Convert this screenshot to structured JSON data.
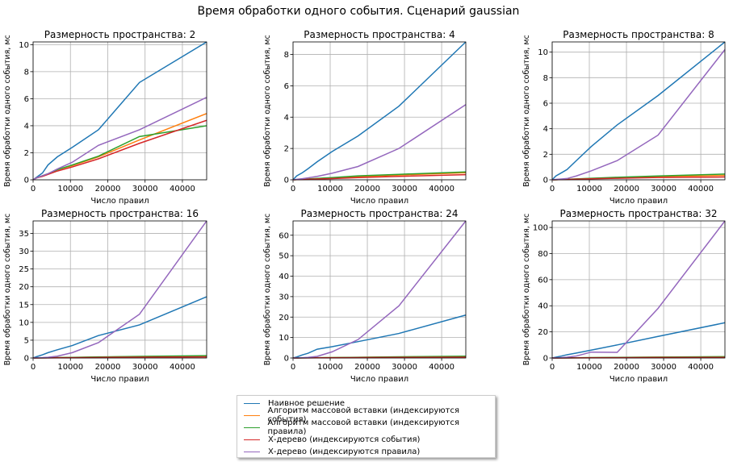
{
  "figure": {
    "title": "Время обработки одного события. Сценарий gaussian"
  },
  "chart_data": [
    {
      "type": "line",
      "title": "Размерность пространства: 2",
      "xlabel": "Число правил",
      "ylabel": "Время обработки одного события, мс",
      "xlim": [
        0,
        46500
      ],
      "ylim": [
        0,
        10.2
      ],
      "xticks": [
        0,
        10000,
        20000,
        30000,
        40000
      ],
      "xtick_labels": [
        "0",
        "10000",
        "20000",
        "30000",
        "40000"
      ],
      "yticks": [
        0,
        2,
        4,
        6,
        8,
        10
      ],
      "ytick_labels": [
        "0",
        "2",
        "4",
        "6",
        "8",
        "10"
      ],
      "grid": true,
      "series": [
        {
          "name": "Наивное решение",
          "color": "#1f77b4",
          "x": [
            0,
            1000,
            2500,
            4000,
            6500,
            10500,
            17500,
            28500,
            46500
          ],
          "y": [
            0,
            0.2,
            0.5,
            1.1,
            1.7,
            2.4,
            3.7,
            7.2,
            10.2
          ]
        },
        {
          "name": "Алгоритм массовой вставки (индексируются события)",
          "color": "#ff7f0e",
          "x": [
            0,
            1000,
            2500,
            4000,
            6500,
            10500,
            17500,
            28500,
            46500
          ],
          "y": [
            0,
            0.15,
            0.3,
            0.45,
            0.75,
            1.05,
            1.7,
            2.95,
            4.9
          ]
        },
        {
          "name": "Алгоритм массовой вставки (индексируются правила)",
          "color": "#2ca02c",
          "x": [
            0,
            1000,
            2500,
            4000,
            6500,
            10500,
            17500,
            28500,
            46500
          ],
          "y": [
            0,
            0.15,
            0.3,
            0.45,
            0.75,
            1.1,
            1.75,
            3.2,
            4.0
          ]
        },
        {
          "name": "Х-дерево (индексируются события)",
          "color": "#d62728",
          "x": [
            0,
            1000,
            2500,
            4000,
            6500,
            10500,
            17500,
            28500,
            46500
          ],
          "y": [
            0,
            0.15,
            0.25,
            0.4,
            0.65,
            0.95,
            1.55,
            2.7,
            4.4
          ]
        },
        {
          "name": "Х-дерево (индексируются правила)",
          "color": "#9467bd",
          "x": [
            0,
            1000,
            2500,
            4000,
            6500,
            10500,
            17500,
            28500,
            46500
          ],
          "y": [
            0,
            0.15,
            0.3,
            0.45,
            0.8,
            1.3,
            2.55,
            3.7,
            6.1
          ]
        }
      ]
    },
    {
      "type": "line",
      "title": "Размерность пространства: 4",
      "xlabel": "Число правил",
      "ylabel": "Время обработки одного события, мс",
      "xlim": [
        0,
        46500
      ],
      "ylim": [
        0,
        8.8
      ],
      "xticks": [
        0,
        10000,
        20000,
        30000,
        40000
      ],
      "xtick_labels": [
        "0",
        "10000",
        "20000",
        "30000",
        "40000"
      ],
      "yticks": [
        0,
        2,
        4,
        6,
        8
      ],
      "ytick_labels": [
        "0",
        "2",
        "4",
        "6",
        "8"
      ],
      "grid": true,
      "series": [
        {
          "name": "Наивное решение",
          "color": "#1f77b4",
          "x": [
            0,
            1000,
            2500,
            4000,
            6500,
            10500,
            17500,
            28500,
            46500
          ],
          "y": [
            0,
            0.25,
            0.45,
            0.7,
            1.15,
            1.8,
            2.8,
            4.7,
            8.8
          ]
        },
        {
          "name": "Алгоритм массовой вставки (индексируются события)",
          "color": "#ff7f0e",
          "x": [
            0,
            1000,
            2500,
            4000,
            6500,
            10500,
            17500,
            28500,
            46500
          ],
          "y": [
            0,
            0.01,
            0.03,
            0.05,
            0.08,
            0.12,
            0.2,
            0.3,
            0.45
          ]
        },
        {
          "name": "Алгоритм массовой вставки (индексируются правила)",
          "color": "#2ca02c",
          "x": [
            0,
            1000,
            2500,
            4000,
            6500,
            10500,
            17500,
            28500,
            46500
          ],
          "y": [
            0,
            0.01,
            0.03,
            0.05,
            0.09,
            0.14,
            0.25,
            0.35,
            0.5
          ]
        },
        {
          "name": "Х-дерево (индексируются события)",
          "color": "#d62728",
          "x": [
            0,
            1000,
            2500,
            4000,
            6500,
            10500,
            17500,
            28500,
            46500
          ],
          "y": [
            0,
            0.01,
            0.02,
            0.03,
            0.05,
            0.08,
            0.14,
            0.22,
            0.33
          ]
        },
        {
          "name": "Х-дерево (индексируются правила)",
          "color": "#9467bd",
          "x": [
            0,
            1000,
            2500,
            4000,
            6500,
            10500,
            17500,
            28500,
            46500
          ],
          "y": [
            0,
            0.03,
            0.07,
            0.12,
            0.22,
            0.42,
            0.85,
            2.0,
            4.8
          ]
        }
      ]
    },
    {
      "type": "line",
      "title": "Размерность пространства: 8",
      "xlabel": "Число правил",
      "ylabel": "Время обработки одного события, мс",
      "xlim": [
        0,
        46500
      ],
      "ylim": [
        0,
        10.8
      ],
      "xticks": [
        0,
        10000,
        20000,
        30000,
        40000
      ],
      "xtick_labels": [
        "0",
        "10000",
        "20000",
        "30000",
        "40000"
      ],
      "yticks": [
        0,
        2,
        4,
        6,
        8,
        10
      ],
      "ytick_labels": [
        "0",
        "2",
        "4",
        "6",
        "8",
        "10"
      ],
      "grid": true,
      "series": [
        {
          "name": "Наивное решение",
          "color": "#1f77b4",
          "x": [
            0,
            1000,
            2500,
            4000,
            6500,
            10500,
            17500,
            28500,
            46500
          ],
          "y": [
            0,
            0.3,
            0.55,
            0.8,
            1.5,
            2.6,
            4.3,
            6.6,
            10.8
          ]
        },
        {
          "name": "Алгоритм массовой вставки (индексируются события)",
          "color": "#ff7f0e",
          "x": [
            0,
            1000,
            2500,
            4000,
            6500,
            10500,
            17500,
            28500,
            46500
          ],
          "y": [
            0,
            0.01,
            0.02,
            0.03,
            0.06,
            0.1,
            0.17,
            0.25,
            0.35
          ]
        },
        {
          "name": "Алгоритм массовой вставки (индексируются правила)",
          "color": "#2ca02c",
          "x": [
            0,
            1000,
            2500,
            4000,
            6500,
            10500,
            17500,
            28500,
            46500
          ],
          "y": [
            0,
            0.01,
            0.02,
            0.04,
            0.07,
            0.12,
            0.2,
            0.3,
            0.45
          ]
        },
        {
          "name": "Х-дерево (индексируются события)",
          "color": "#d62728",
          "x": [
            0,
            1000,
            2500,
            4000,
            6500,
            10500,
            17500,
            28500,
            46500
          ],
          "y": [
            0,
            0.01,
            0.02,
            0.03,
            0.05,
            0.08,
            0.12,
            0.18,
            0.22
          ]
        },
        {
          "name": "Х-дерево (индексируются правила)",
          "color": "#9467bd",
          "x": [
            0,
            1000,
            2500,
            4000,
            6500,
            10500,
            17500,
            28500,
            46500
          ],
          "y": [
            0,
            0.03,
            0.06,
            0.1,
            0.3,
            0.7,
            1.5,
            3.5,
            10.2
          ]
        }
      ]
    },
    {
      "type": "line",
      "title": "Размерность пространства: 16",
      "xlabel": "Число правил",
      "ylabel": "Время обработки одного события, мс",
      "xlim": [
        0,
        46500
      ],
      "ylim": [
        0,
        38.5
      ],
      "xticks": [
        0,
        10000,
        20000,
        30000,
        40000
      ],
      "xtick_labels": [
        "0",
        "10000",
        "20000",
        "30000",
        "40000"
      ],
      "yticks": [
        0,
        5,
        10,
        15,
        20,
        25,
        30,
        35
      ],
      "ytick_labels": [
        "0",
        "5",
        "10",
        "15",
        "20",
        "25",
        "30",
        "35"
      ],
      "grid": true,
      "series": [
        {
          "name": "Наивное решение",
          "color": "#1f77b4",
          "x": [
            0,
            1000,
            2500,
            4000,
            6500,
            10500,
            17500,
            28500,
            46500
          ],
          "y": [
            0,
            0.4,
            0.9,
            1.5,
            2.3,
            3.5,
            6.3,
            9.3,
            17.2
          ]
        },
        {
          "name": "Алгоритм массовой вставки (индексируются события)",
          "color": "#ff7f0e",
          "x": [
            0,
            1000,
            2500,
            4000,
            6500,
            10500,
            17500,
            28500,
            46500
          ],
          "y": [
            0,
            0.02,
            0.04,
            0.06,
            0.1,
            0.15,
            0.25,
            0.4,
            0.55
          ]
        },
        {
          "name": "Алгоритм массовой вставки (индексируются правила)",
          "color": "#2ca02c",
          "x": [
            0,
            1000,
            2500,
            4000,
            6500,
            10500,
            17500,
            28500,
            46500
          ],
          "y": [
            0,
            0.02,
            0.04,
            0.07,
            0.11,
            0.17,
            0.3,
            0.45,
            0.65
          ]
        },
        {
          "name": "Х-дерево (индексируются события)",
          "color": "#d62728",
          "x": [
            0,
            1000,
            2500,
            4000,
            6500,
            10500,
            17500,
            28500,
            46500
          ],
          "y": [
            0,
            0.01,
            0.02,
            0.04,
            0.06,
            0.09,
            0.15,
            0.22,
            0.3
          ]
        },
        {
          "name": "Х-дерево (индексируются правила)",
          "color": "#9467bd",
          "x": [
            0,
            1000,
            2500,
            4000,
            6500,
            10500,
            17500,
            28500,
            46500
          ],
          "y": [
            0,
            0.05,
            0.1,
            0.2,
            0.5,
            1.5,
            4.3,
            12.3,
            38.5
          ]
        }
      ]
    },
    {
      "type": "line",
      "title": "Размерность пространства: 24",
      "xlabel": "Число правил",
      "ylabel": "Время обработки одного события, мс",
      "xlim": [
        0,
        46500
      ],
      "ylim": [
        0,
        67
      ],
      "xticks": [
        0,
        10000,
        20000,
        30000,
        40000
      ],
      "xtick_labels": [
        "0",
        "10000",
        "20000",
        "30000",
        "40000"
      ],
      "yticks": [
        0,
        10,
        20,
        30,
        40,
        50,
        60
      ],
      "ytick_labels": [
        "0",
        "10",
        "20",
        "30",
        "40",
        "50",
        "60"
      ],
      "grid": true,
      "series": [
        {
          "name": "Наивное решение",
          "color": "#1f77b4",
          "x": [
            0,
            1000,
            2500,
            4000,
            6500,
            10500,
            17500,
            28500,
            46500
          ],
          "y": [
            0,
            0.5,
            1.5,
            2.3,
            4.3,
            5.5,
            8.0,
            12.0,
            21.0
          ]
        },
        {
          "name": "Алгоритм массовой вставки (индексируются события)",
          "color": "#ff7f0e",
          "x": [
            0,
            1000,
            2500,
            4000,
            6500,
            10500,
            17500,
            28500,
            46500
          ],
          "y": [
            0,
            0.02,
            0.05,
            0.08,
            0.12,
            0.2,
            0.3,
            0.5,
            0.7
          ]
        },
        {
          "name": "Алгоритм массовой вставки (индексируются правила)",
          "color": "#2ca02c",
          "x": [
            0,
            1000,
            2500,
            4000,
            6500,
            10500,
            17500,
            28500,
            46500
          ],
          "y": [
            0,
            0.02,
            0.05,
            0.09,
            0.14,
            0.22,
            0.35,
            0.6,
            0.9
          ]
        },
        {
          "name": "Х-дерево (индексируются события)",
          "color": "#d62728",
          "x": [
            0,
            1000,
            2500,
            4000,
            6500,
            10500,
            17500,
            28500,
            46500
          ],
          "y": [
            0,
            0.01,
            0.03,
            0.05,
            0.08,
            0.12,
            0.18,
            0.28,
            0.4
          ]
        },
        {
          "name": "Х-дерево (индексируются правила)",
          "color": "#9467bd",
          "x": [
            0,
            1000,
            2500,
            4000,
            6500,
            10500,
            17500,
            28500,
            46500
          ],
          "y": [
            0,
            0.05,
            0.15,
            0.3,
            0.8,
            3.0,
            9.0,
            25.5,
            67.0
          ]
        }
      ]
    },
    {
      "type": "line",
      "title": "Размерность пространства: 32",
      "xlabel": "Число правил",
      "ylabel": "Время обработки одного события, мс",
      "xlim": [
        0,
        46500
      ],
      "ylim": [
        0,
        105
      ],
      "xticks": [
        0,
        10000,
        20000,
        30000,
        40000
      ],
      "xtick_labels": [
        "0",
        "10000",
        "20000",
        "30000",
        "40000"
      ],
      "yticks": [
        0,
        20,
        40,
        60,
        80,
        100
      ],
      "ytick_labels": [
        "0",
        "20",
        "40",
        "60",
        "80",
        "100"
      ],
      "grid": true,
      "series": [
        {
          "name": "Наивное решение",
          "color": "#1f77b4",
          "x": [
            0,
            1000,
            2500,
            4000,
            6500,
            10500,
            17500,
            28500,
            46500
          ],
          "y": [
            0,
            0.6,
            1.5,
            2.5,
            3.8,
            6.0,
            10.0,
            16.5,
            27.0
          ]
        },
        {
          "name": "Алгоритм массовой вставки (индексируются события)",
          "color": "#ff7f0e",
          "x": [
            0,
            1000,
            2500,
            4000,
            6500,
            10500,
            17500,
            28500,
            46500
          ],
          "y": [
            0,
            0.03,
            0.06,
            0.1,
            0.15,
            0.25,
            0.4,
            0.6,
            0.9
          ]
        },
        {
          "name": "Алгоритм массовой вставки (индексируются правила)",
          "color": "#2ca02c",
          "x": [
            0,
            1000,
            2500,
            4000,
            6500,
            10500,
            17500,
            28500,
            46500
          ],
          "y": [
            0,
            0.03,
            0.07,
            0.11,
            0.17,
            0.28,
            0.45,
            0.7,
            1.0
          ]
        },
        {
          "name": "Х-дерево (индексируются события)",
          "color": "#d62728",
          "x": [
            0,
            1000,
            2500,
            4000,
            6500,
            10500,
            17500,
            28500,
            46500
          ],
          "y": [
            0,
            0.02,
            0.04,
            0.06,
            0.1,
            0.15,
            0.25,
            0.35,
            0.5
          ]
        },
        {
          "name": "Х-дерево (индексируются правила)",
          "color": "#9467bd",
          "x": [
            0,
            1000,
            2500,
            4000,
            6500,
            10500,
            17500,
            28500,
            46500
          ],
          "y": [
            0,
            0.1,
            0.3,
            0.6,
            1.5,
            4.5,
            4.3,
            38.0,
            105.0
          ]
        }
      ]
    }
  ],
  "legend": {
    "placement": "bottom-center",
    "items": [
      {
        "label": "Наивное решение",
        "color": "#1f77b4"
      },
      {
        "label": "Алгоритм массовой вставки (индексируются события)",
        "color": "#ff7f0e"
      },
      {
        "label": "Алгоритм массовой вставки (индексируются правила)",
        "color": "#2ca02c"
      },
      {
        "label": "Х-дерево (индексируются события)",
        "color": "#d62728"
      },
      {
        "label": "Х-дерево (индексируются правила)",
        "color": "#9467bd"
      }
    ]
  }
}
